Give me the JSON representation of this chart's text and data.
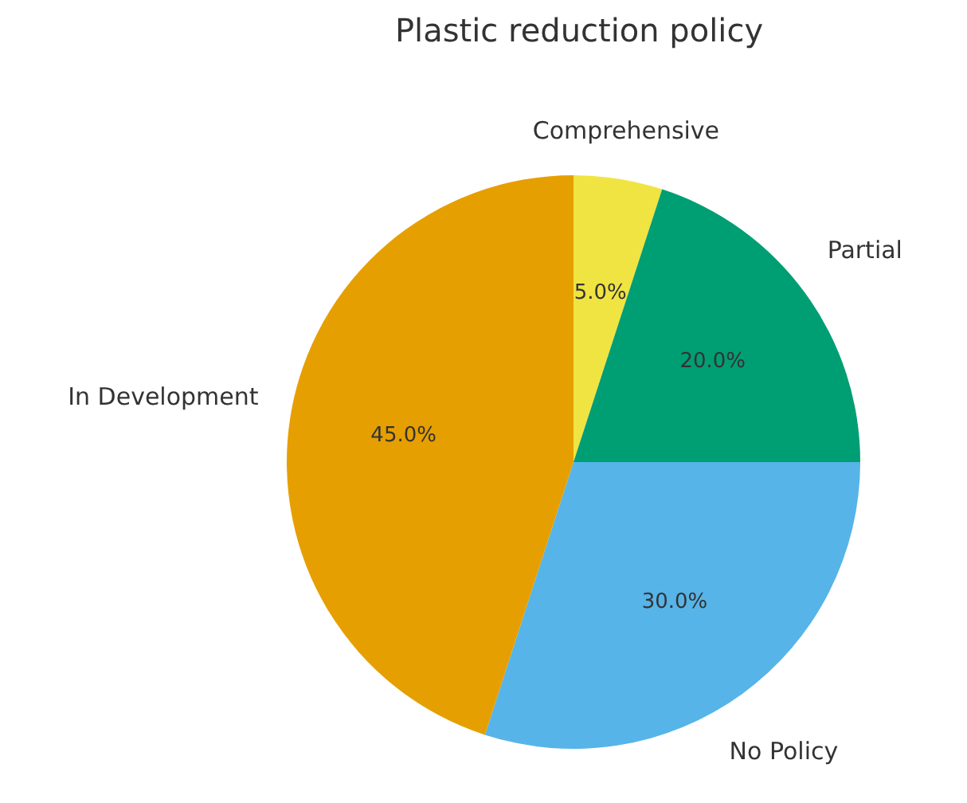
{
  "chart_data": {
    "type": "pie",
    "title": "Plastic reduction policy",
    "categories": [
      "Comprehensive",
      "Partial",
      "No Policy",
      "In Development"
    ],
    "values": [
      5,
      20,
      30,
      45
    ],
    "colors": [
      "#f0e442",
      "#009e73",
      "#56b4e9",
      "#e69f00"
    ],
    "value_labels": [
      "5.0%",
      "20.0%",
      "30.0%",
      "45.0%"
    ]
  }
}
